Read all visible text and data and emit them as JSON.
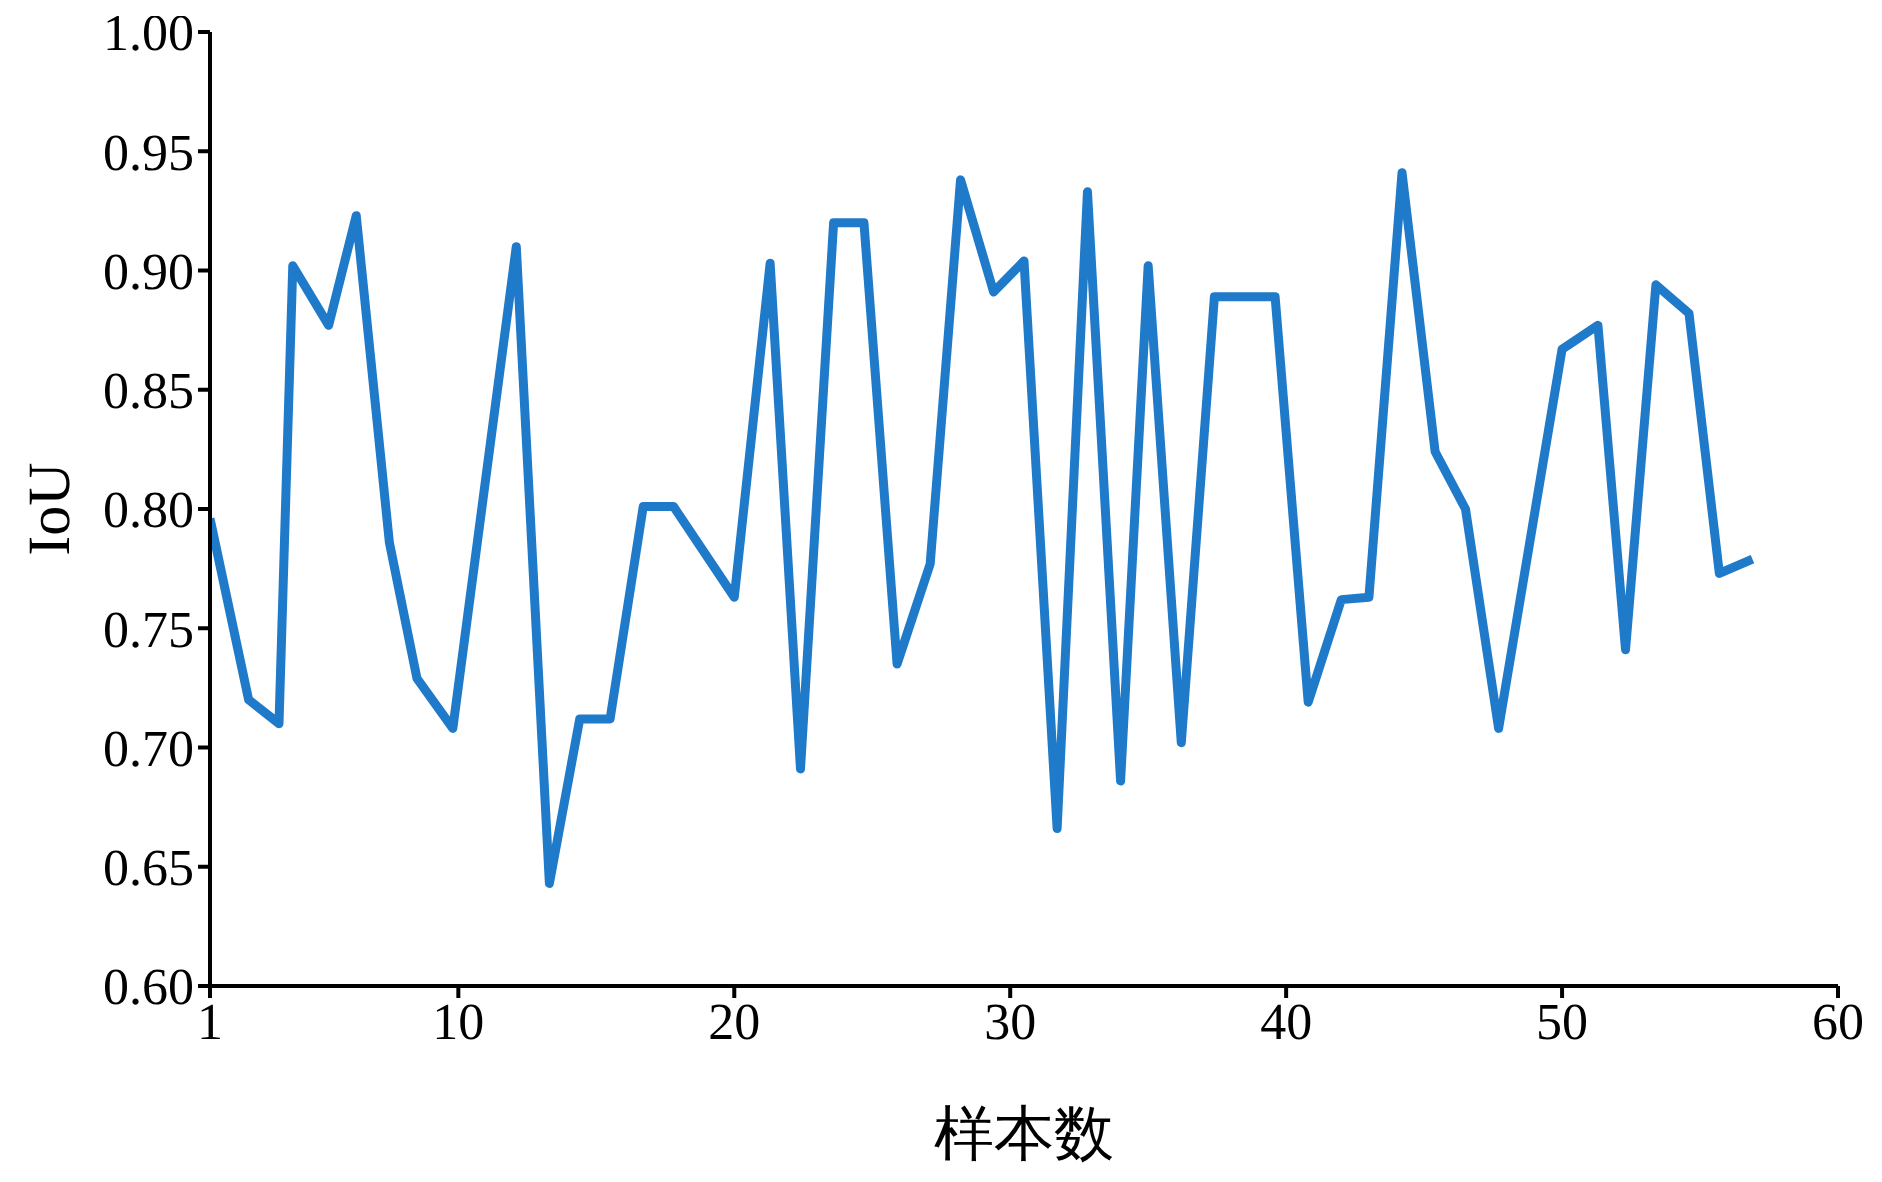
{
  "chart_data": {
    "type": "line",
    "xlabel": "样本数",
    "ylabel": "IoU",
    "x": [
      1,
      2.4,
      3.5,
      4,
      5.3,
      6.3,
      7.5,
      8.5,
      9.8,
      12.1,
      13.3,
      14.4,
      15.5,
      16.7,
      17.8,
      20,
      21.3,
      22.4,
      23.6,
      24.7,
      25.9,
      27.1,
      28.2,
      29.4,
      30.5,
      31.7,
      32.8,
      34,
      35,
      36.2,
      37.4,
      39.6,
      40.8,
      42,
      43,
      44.2,
      45.4,
      46.5,
      47.7,
      50,
      51.3,
      52.3,
      53.4,
      54.6,
      55.7,
      56.9
    ],
    "series": [
      {
        "color": "#1f7ac9",
        "values": [
          0.796,
          0.72,
          0.71,
          0.902,
          0.877,
          0.923,
          0.786,
          0.729,
          0.708,
          0.91,
          0.643,
          0.712,
          0.712,
          0.801,
          0.801,
          0.763,
          0.903,
          0.691,
          0.92,
          0.92,
          0.735,
          0.777,
          0.938,
          0.891,
          0.904,
          0.666,
          0.933,
          0.686,
          0.902,
          0.702,
          0.889,
          0.889,
          0.719,
          0.762,
          0.763,
          0.941,
          0.824,
          0.8,
          0.708,
          0.867,
          0.877,
          0.741,
          0.894,
          0.882,
          0.773,
          0.779
        ]
      }
    ],
    "xlim": [
      1,
      60
    ],
    "xticks": [
      1,
      10,
      20,
      30,
      40,
      50,
      60
    ],
    "ylim": [
      0.6,
      1.0
    ],
    "yticks": [
      {
        "value": 0.6,
        "label": "0.60"
      },
      {
        "value": 0.65,
        "label": "0.65"
      },
      {
        "value": 0.7,
        "label": "0.70"
      },
      {
        "value": 0.75,
        "label": "0.75"
      },
      {
        "value": 0.8,
        "label": "0.80"
      },
      {
        "value": 0.85,
        "label": "0.85"
      },
      {
        "value": 0.9,
        "label": "0.90"
      },
      {
        "value": 0.95,
        "label": "0.95"
      },
      {
        "value": 1.0,
        "label": "1.00"
      }
    ],
    "marker": "none",
    "line_style": "solid"
  }
}
